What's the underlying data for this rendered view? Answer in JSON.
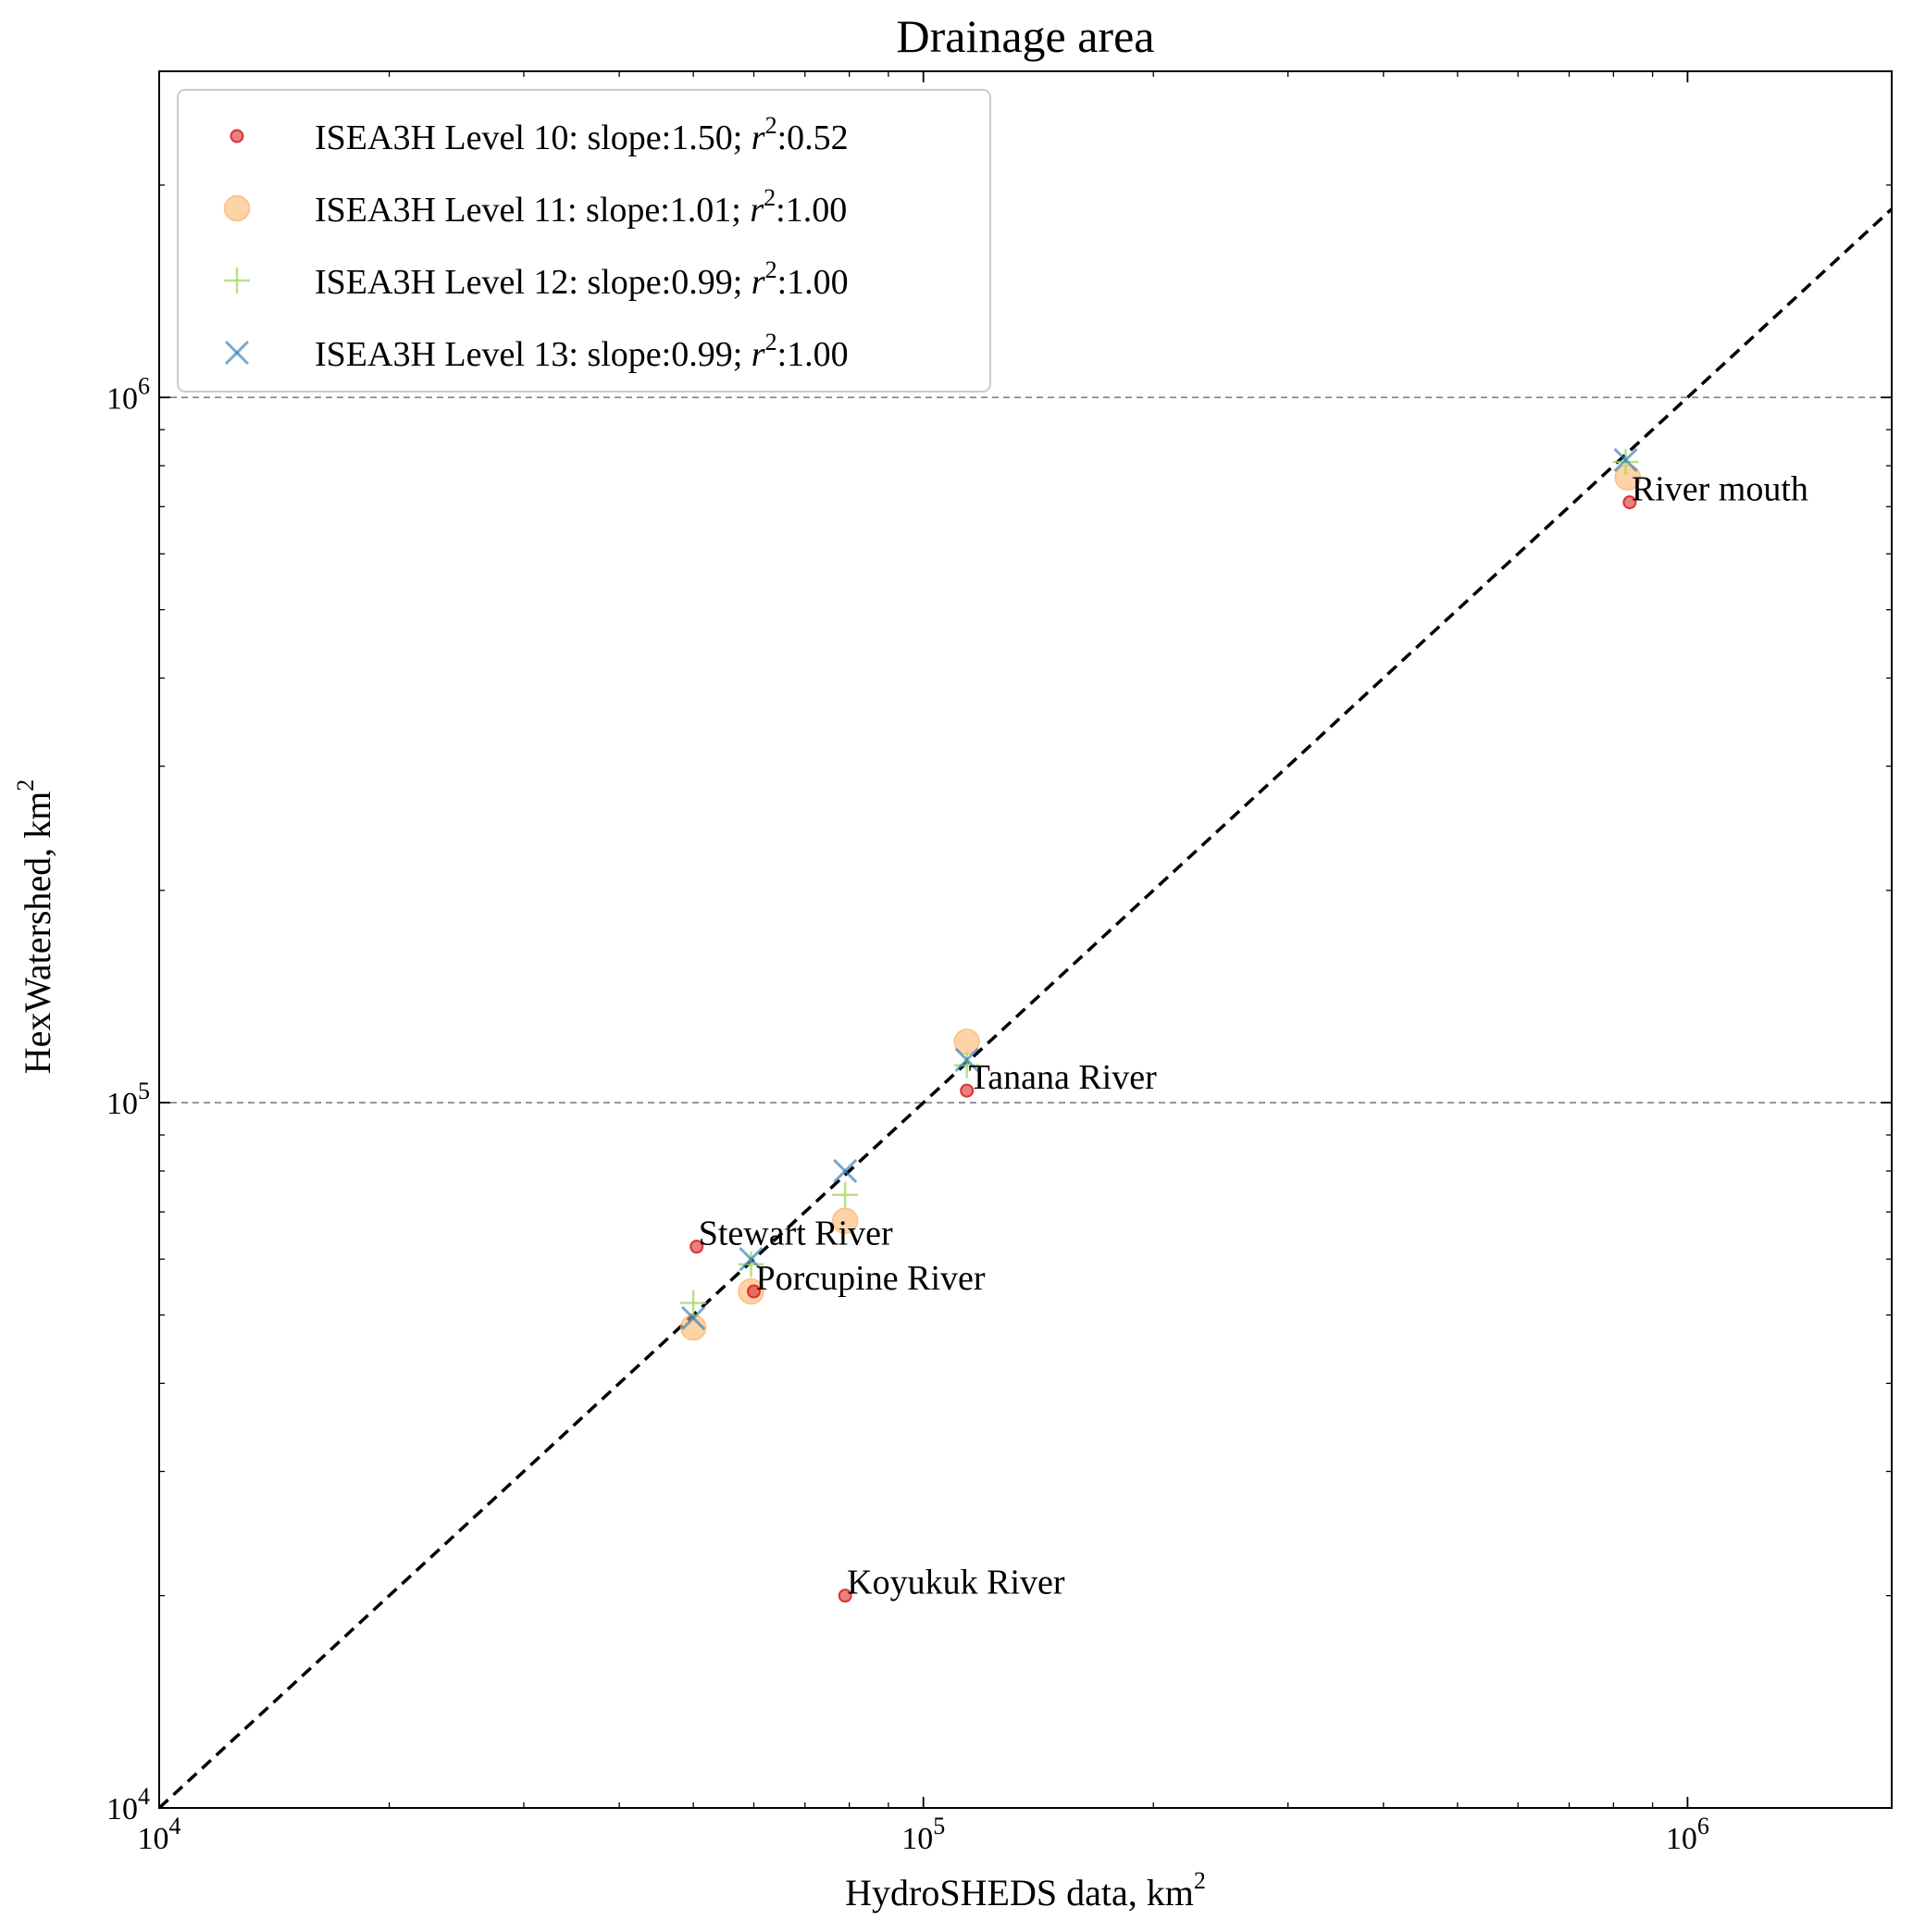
{
  "chart_data": {
    "type": "scatter",
    "title": "Drainage area",
    "xlabel": {
      "text": "HydroSHEDS data, km",
      "sup": "2"
    },
    "ylabel": {
      "text": "HexWatershed, km",
      "sup": "2"
    },
    "xscale": "log",
    "yscale": "log",
    "xlim": [
      10000,
      1850000
    ],
    "ylim": [
      10000,
      2900000
    ],
    "x_ticks": [
      {
        "value": 10000,
        "base": "10",
        "exp": "4"
      },
      {
        "value": 100000,
        "base": "10",
        "exp": "5"
      },
      {
        "value": 1000000,
        "base": "10",
        "exp": "6"
      }
    ],
    "y_ticks": [
      {
        "value": 10000,
        "base": "10",
        "exp": "4"
      },
      {
        "value": 100000,
        "base": "10",
        "exp": "5"
      },
      {
        "value": 1000000,
        "base": "10",
        "exp": "6"
      }
    ],
    "grid": "horizontal-dashed",
    "reference_line": "1:1",
    "legend_placement": "upper-left",
    "colors": {
      "level10": "#d7191c",
      "level11": "#fdae61",
      "level12": "#a6d96a",
      "level13": "#2c7bb6",
      "ref": "#000000",
      "grid": "#808080"
    },
    "series": [
      {
        "name": "ISEA3H Level 10: slope:1.50; r2:0.52",
        "legend": {
          "prefix": "ISEA3H Level 10: slope:1.50; ",
          "r": "r",
          "sup": "2",
          "suffix": ":0.52"
        },
        "marker": "small-circle",
        "x": [
          840000,
          114000,
          79000,
          50500,
          60000
        ],
        "y": [
          710000,
          104000,
          20000,
          62500,
          54000
        ]
      },
      {
        "name": "ISEA3H Level 11: slope:1.01; r2:1.00",
        "legend": {
          "prefix": "ISEA3H Level 11: slope:1.01; ",
          "r": "r",
          "sup": "2",
          "suffix": ":1.00"
        },
        "marker": "large-circle",
        "x": [
          835000,
          114000,
          79000,
          50000,
          59500
        ],
        "y": [
          770000,
          122000,
          68000,
          48000,
          54000
        ]
      },
      {
        "name": "ISEA3H Level 12: slope:0.99; r2:1.00",
        "legend": {
          "prefix": "ISEA3H Level 12: slope:0.99; ",
          "r": "r",
          "sup": "2",
          "suffix": ":1.00"
        },
        "marker": "plus",
        "x": [
          830000,
          114000,
          79000,
          50000,
          59500
        ],
        "y": [
          810000,
          113000,
          74000,
          52000,
          59000
        ]
      },
      {
        "name": "ISEA3H Level 13: slope:0.99; r2:1.00",
        "legend": {
          "prefix": "ISEA3H Level 13: slope:0.99; ",
          "r": "r",
          "sup": "2",
          "suffix": ":1.00"
        },
        "marker": "x",
        "x": [
          830000,
          114000,
          79000,
          50000,
          59500
        ],
        "y": [
          815000,
          115000,
          80000,
          49500,
          60000
        ]
      }
    ],
    "annotations": [
      {
        "text": "River mouth",
        "x": 840000,
        "y": 710000
      },
      {
        "text": "Tanana River",
        "x": 114000,
        "y": 104000
      },
      {
        "text": "Koyukuk River",
        "x": 79000,
        "y": 20000
      },
      {
        "text": "Stewart River",
        "x": 50500,
        "y": 62500
      },
      {
        "text": "Porcupine River",
        "x": 60000,
        "y": 54000
      }
    ]
  }
}
